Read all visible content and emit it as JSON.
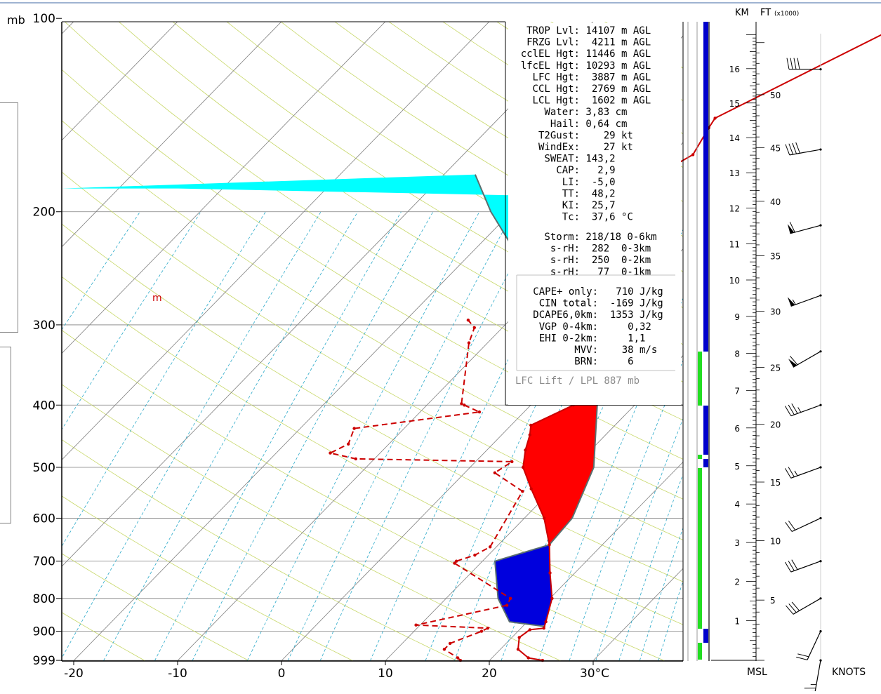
{
  "chart_data": {
    "type": "skew-t",
    "xlabel": "30°C",
    "pressure_unit": "mb",
    "x_ticks": [
      -20,
      -10,
      0,
      10,
      20,
      30
    ],
    "x_tick_labels": [
      "-20",
      "-10",
      "0",
      "10",
      "20",
      "30°C"
    ],
    "pressure_ticks": [
      100,
      200,
      300,
      400,
      500,
      600,
      700,
      800,
      900,
      999
    ],
    "temperature": [
      {
        "p": 999,
        "t": 25.1
      },
      {
        "p": 990,
        "t": 23.5
      },
      {
        "p": 960,
        "t": 21.7
      },
      {
        "p": 920,
        "t": 20.7
      },
      {
        "p": 895,
        "t": 21.0
      },
      {
        "p": 890,
        "t": 22.2
      },
      {
        "p": 870,
        "t": 21.8
      },
      {
        "p": 800,
        "t": 20.2
      },
      {
        "p": 730,
        "t": 17.6
      },
      {
        "p": 660,
        "t": 14.9
      },
      {
        "p": 600,
        "t": 11.9
      },
      {
        "p": 540,
        "t": 7.9
      },
      {
        "p": 500,
        "t": 5.1
      },
      {
        "p": 470,
        "t": 3.7
      },
      {
        "p": 445,
        "t": 2.7
      },
      {
        "p": 430,
        "t": 1.9
      },
      {
        "p": 400,
        "t": 4.1
      },
      {
        "p": 355,
        "t": -0.1
      },
      {
        "p": 320,
        "t": -3.9
      },
      {
        "p": 300,
        "t": -7.1
      },
      {
        "p": 285,
        "t": -8.2
      },
      {
        "p": 260,
        "t": -9.8
      },
      {
        "p": 242,
        "t": -10.4
      },
      {
        "p": 215,
        "t": -11.9
      },
      {
        "p": 208,
        "t": -11.7
      },
      {
        "p": 198,
        "t": -11.9
      },
      {
        "p": 183,
        "t": -10.3
      },
      {
        "p": 163,
        "t": -7.9
      },
      {
        "p": 148,
        "t": -8.9
      },
      {
        "p": 143,
        "t": -9.2
      },
      {
        "p": 100,
        "t": 0.6
      }
    ],
    "dewpoint": [
      {
        "p": 999,
        "t": 17.2
      },
      {
        "p": 990,
        "t": 16.7
      },
      {
        "p": 960,
        "t": 14.6
      },
      {
        "p": 940,
        "t": 14.6
      },
      {
        "p": 900,
        "t": 16.5
      },
      {
        "p": 890,
        "t": 16.8
      },
      {
        "p": 880,
        "t": 9.6
      },
      {
        "p": 820,
        "t": 16.5
      },
      {
        "p": 800,
        "t": 16.2
      },
      {
        "p": 705,
        "t": 7.5
      },
      {
        "p": 700,
        "t": 7.5
      },
      {
        "p": 685,
        "t": 8.7
      },
      {
        "p": 665,
        "t": 9.4
      },
      {
        "p": 545,
        "t": 7.3
      },
      {
        "p": 510,
        "t": 2.9
      },
      {
        "p": 490,
        "t": 3.5
      },
      {
        "p": 485,
        "t": -11.8
      },
      {
        "p": 475,
        "t": -14.8
      },
      {
        "p": 460,
        "t": -13.9
      },
      {
        "p": 435,
        "t": -14.8
      },
      {
        "p": 410,
        "t": -4.3
      },
      {
        "p": 400,
        "t": -6.4
      },
      {
        "p": 398,
        "t": -6.8
      },
      {
        "p": 320,
        "t": -11.8
      },
      {
        "p": 303,
        "t": -12.7
      },
      {
        "p": 295,
        "t": -14.0
      }
    ],
    "parcel_trace": [
      {
        "p": 885,
        "t": 22.2
      },
      {
        "p": 870,
        "t": 18.3
      },
      {
        "p": 800,
        "t": 15.0
      },
      {
        "p": 700,
        "t": 11.2
      },
      {
        "p": 660,
        "t": 14.9
      },
      {
        "p": 600,
        "t": 14.6
      },
      {
        "p": 500,
        "t": 11.9
      },
      {
        "p": 400,
        "t": 6.4
      },
      {
        "p": 300,
        "t": -5.6
      },
      {
        "p": 265,
        "t": -10.0
      },
      {
        "p": 200,
        "t": -22.0
      },
      {
        "p": 175,
        "t": -27.0
      }
    ],
    "dewpoint_label": "m",
    "height_axis": {
      "km_label": "KM",
      "ft_label": "FT",
      "ft_sublabel": "(x1000)",
      "km_ticks": [
        1,
        2,
        3,
        4,
        5,
        6,
        7,
        8,
        9,
        10,
        11,
        12,
        13,
        14,
        15,
        16
      ],
      "ft_ticks": [
        5,
        10,
        15,
        20,
        25,
        30,
        35,
        40,
        45,
        50
      ],
      "bottom_label": "MSL"
    },
    "wind_axis_label": "KNOTS",
    "wind_barbs": [
      {
        "p": 999,
        "dir": 190,
        "spd": 25
      },
      {
        "p": 900,
        "dir": 205,
        "spd": 20
      },
      {
        "p": 800,
        "dir": 240,
        "spd": 30
      },
      {
        "p": 700,
        "dir": 250,
        "spd": 30
      },
      {
        "p": 600,
        "dir": 245,
        "spd": 20
      },
      {
        "p": 500,
        "dir": 250,
        "spd": 25
      },
      {
        "p": 400,
        "dir": 250,
        "spd": 35
      },
      {
        "p": 330,
        "dir": 240,
        "spd": 60
      },
      {
        "p": 270,
        "dir": 250,
        "spd": 55
      },
      {
        "p": 210,
        "dir": 255,
        "spd": 60
      },
      {
        "p": 160,
        "dir": 260,
        "spd": 40
      },
      {
        "p": 120,
        "dir": 270,
        "spd": 40
      }
    ]
  },
  "indices": [
    {
      "label": " TROP Lvl:",
      "value": " 14107 m AGL"
    },
    {
      "label": " FRZG Lvl:",
      "value": "  4211 m AGL"
    },
    {
      "label": "cclEL Hgt:",
      "value": " 11446 m AGL"
    },
    {
      "label": "lfcEL Hgt:",
      "value": " 10293 m AGL"
    },
    {
      "label": "  LFC Hgt:",
      "value": "  3887 m AGL"
    },
    {
      "label": "  CCL Hgt:",
      "value": "  2769 m AGL"
    },
    {
      "label": "  LCL Hgt:",
      "value": "  1602 m AGL"
    },
    {
      "label": "   Water:",
      "value": " 3,83 cm"
    },
    {
      "label": "    Hail:",
      "value": " 0,64 cm"
    },
    {
      "label": "  T2Gust:",
      "value": "    29 kt"
    },
    {
      "label": "  WindEx:",
      "value": "    27 kt"
    },
    {
      "label": "   SWEAT:",
      "value": " 143,2"
    },
    {
      "label": "     CAP:",
      "value": "   2,9"
    },
    {
      "label": "      LI:",
      "value": "  -5,0"
    },
    {
      "label": "      TT:",
      "value": "  48,2"
    },
    {
      "label": "      KI:",
      "value": "  25,7"
    },
    {
      "label": "      Tc:",
      "value": "  37,6 °C"
    }
  ],
  "storm": [
    {
      "label": "   Storm:",
      "value": " 218/18 0-6km"
    },
    {
      "label": "    s-rH:",
      "value": "  282  0-3km"
    },
    {
      "label": "    s-rH:",
      "value": "  250  0-2km"
    },
    {
      "label": "    s-rH:",
      "value": "   77  0-1km"
    }
  ],
  "cape": [
    {
      "label": "CAPE+ only:",
      "value": "   710 J/kg"
    },
    {
      "label": " CIN total:",
      "value": "  -169 J/kg"
    },
    {
      "label": "DCAPE6,0km:",
      "value": "  1353 J/kg"
    },
    {
      "label": " VGP 0-4km:",
      "value": "     0,32"
    },
    {
      "label": " EHI 0-2km:",
      "value": "     1,1"
    },
    {
      "label": "       MVV:",
      "value": "    38 m/s"
    },
    {
      "label": "       BRN:",
      "value": "     6"
    }
  ],
  "lfc_lift": "LFC Lift / LPL 887 mb",
  "colors": {
    "temperature": "#cc0000",
    "dewpoint": "#cc0000",
    "cape": "#ff0000",
    "cin": "#0000dd",
    "upper_cape": "#00ffff",
    "isotherm": "#7f7f7f",
    "dry_adiabat": "#c8d86a",
    "mixing_ratio": "#2aa9c9",
    "green_bar": "#22dd22",
    "blue_bar": "#0000cc"
  }
}
